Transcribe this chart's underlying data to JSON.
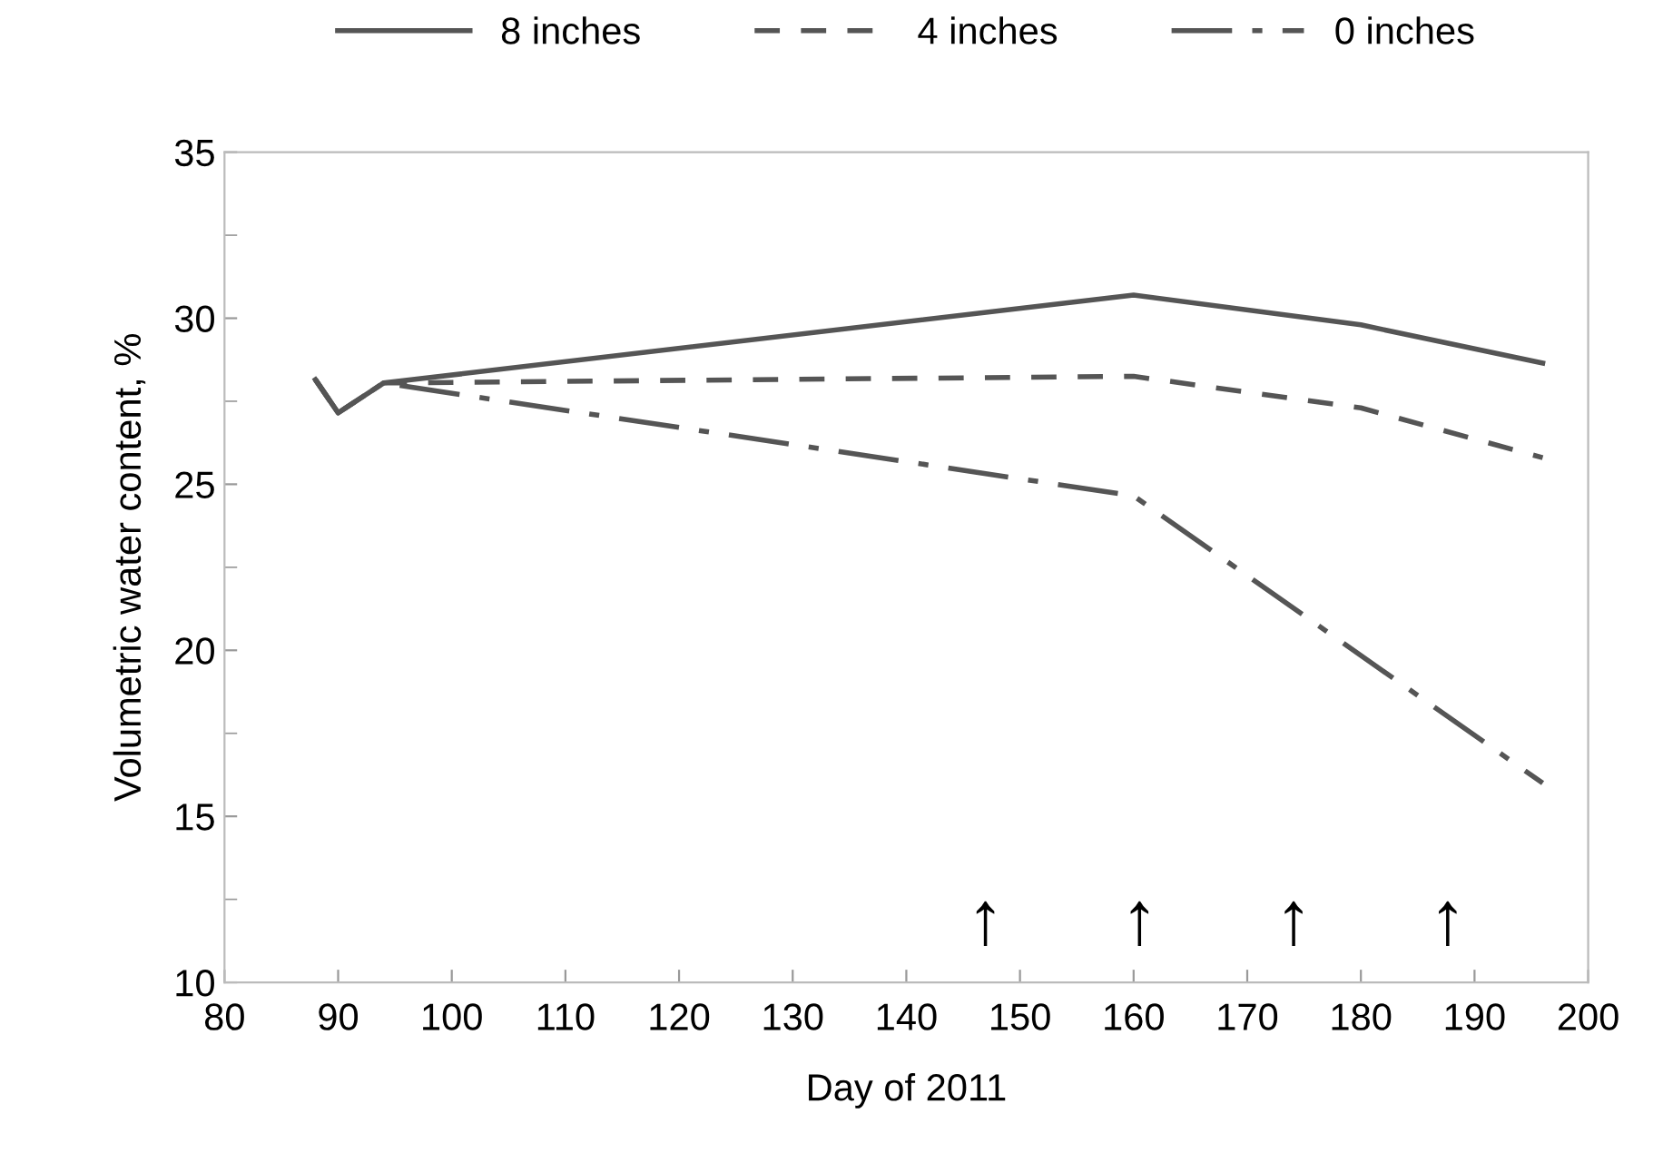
{
  "chart_data": {
    "type": "line",
    "xlabel": "Day of 2011",
    "ylabel": "Volumetric water content, %",
    "xlim": [
      80,
      200
    ],
    "xticks": [
      80,
      90,
      100,
      110,
      120,
      130,
      140,
      150,
      160,
      170,
      180,
      190,
      200
    ],
    "ylim": [
      10,
      35
    ],
    "yticks": [
      10,
      15,
      20,
      25,
      30,
      35
    ],
    "grid": false,
    "legend": "top",
    "marker": "none",
    "series": [
      {
        "name": "8 inches",
        "color": "#555555",
        "line_style": "solid",
        "x": [
          88,
          90,
          94,
          160,
          180,
          196
        ],
        "values": [
          28.15,
          27.15,
          28.05,
          30.7,
          29.8,
          28.65
        ]
      },
      {
        "name": "4 inches",
        "color": "#555555",
        "line_style": "dashed",
        "x": [
          88,
          90,
          94,
          160,
          180,
          196
        ],
        "values": [
          28.15,
          27.15,
          28.05,
          28.25,
          27.3,
          25.8
        ]
      },
      {
        "name": "0 inches",
        "color": "#555555",
        "line_style": "dashdot",
        "x": [
          88,
          90,
          94,
          160,
          196
        ],
        "values": [
          28.15,
          27.15,
          28.05,
          24.65,
          16.0
        ]
      }
    ],
    "annotations": [
      "↑",
      "↑",
      "↑",
      "↑"
    ]
  }
}
